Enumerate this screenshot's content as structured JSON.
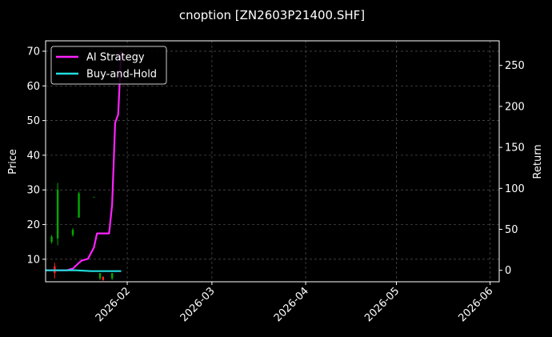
{
  "chart_data": {
    "type": "line",
    "title": "cnoption [ZN2603P21400.SHF]",
    "xlabel": "",
    "ylabel": "Price",
    "ylabel_right": "Return",
    "xlim": [
      "2026-01-05",
      "2026-06-04"
    ],
    "ylim": [
      3.5,
      73
    ],
    "ylim_right": [
      -14,
      280
    ],
    "x_ticks": [
      "2026-02-01",
      "2026-03-01",
      "2026-04-01",
      "2026-05-01",
      "2026-06-01"
    ],
    "x_tick_labels": [
      "2026-02",
      "2026-03",
      "2026-04",
      "2026-05",
      "2026-06"
    ],
    "y_ticks": [
      10,
      20,
      30,
      40,
      50,
      60,
      70
    ],
    "y_ticks_right": [
      0,
      50,
      100,
      150,
      200,
      250
    ],
    "grid": true,
    "legend_position": "top-left",
    "candles": [
      {
        "date": "2026-01-07",
        "open": 16.5,
        "close": 15.0,
        "high": 17.0,
        "low": 14.5,
        "color": "#00aa00"
      },
      {
        "date": "2026-01-08",
        "open": 8.0,
        "close": 6.0,
        "high": 9.0,
        "low": 4.5,
        "color": "#ff2222"
      },
      {
        "date": "2026-01-09",
        "open": 30.0,
        "close": 16.0,
        "high": 32.0,
        "low": 14.0,
        "color": "#00aa00"
      },
      {
        "date": "2026-01-14",
        "open": 18.5,
        "close": 17.0,
        "high": 19.0,
        "low": 16.5,
        "color": "#00aa00"
      },
      {
        "date": "2026-01-16",
        "open": 29.0,
        "close": 22.0,
        "high": 29.5,
        "low": 22.0,
        "color": "#00aa00"
      },
      {
        "date": "2026-01-21",
        "open": 28.0,
        "close": 28.0,
        "high": 28.0,
        "low": 28.0,
        "color": "#00aa00"
      },
      {
        "date": "2026-01-23",
        "open": 6.0,
        "close": 4.5,
        "high": 6.0,
        "low": 4.0,
        "color": "#00aa00"
      },
      {
        "date": "2026-01-24",
        "open": 5.0,
        "close": 4.0,
        "high": 5.0,
        "low": 3.8,
        "color": "#ff2222"
      },
      {
        "date": "2026-01-27",
        "open": 6.0,
        "close": 4.5,
        "high": 6.0,
        "low": 4.0,
        "color": "#00aa00"
      }
    ],
    "series": [
      {
        "name": "AI Strategy",
        "color": "#ff22ff",
        "axis": "right",
        "x": [
          "2026-01-05",
          "2026-01-12",
          "2026-01-14",
          "2026-01-16",
          "2026-01-17",
          "2026-01-19",
          "2026-01-21",
          "2026-01-22",
          "2026-01-24",
          "2026-01-26",
          "2026-01-27",
          "2026-01-28",
          "2026-01-29",
          "2026-01-30"
        ],
        "values": [
          0,
          0,
          2,
          9,
          12,
          14,
          28,
          45,
          45,
          45,
          80,
          180,
          190,
          268
        ]
      },
      {
        "name": "Buy-and-Hold",
        "color": "#22dddd",
        "axis": "right",
        "x": [
          "2026-01-05",
          "2026-01-10",
          "2026-01-15",
          "2026-01-20",
          "2026-01-25",
          "2026-01-30"
        ],
        "values": [
          0,
          0,
          0,
          -1,
          -1,
          -1
        ]
      }
    ]
  }
}
